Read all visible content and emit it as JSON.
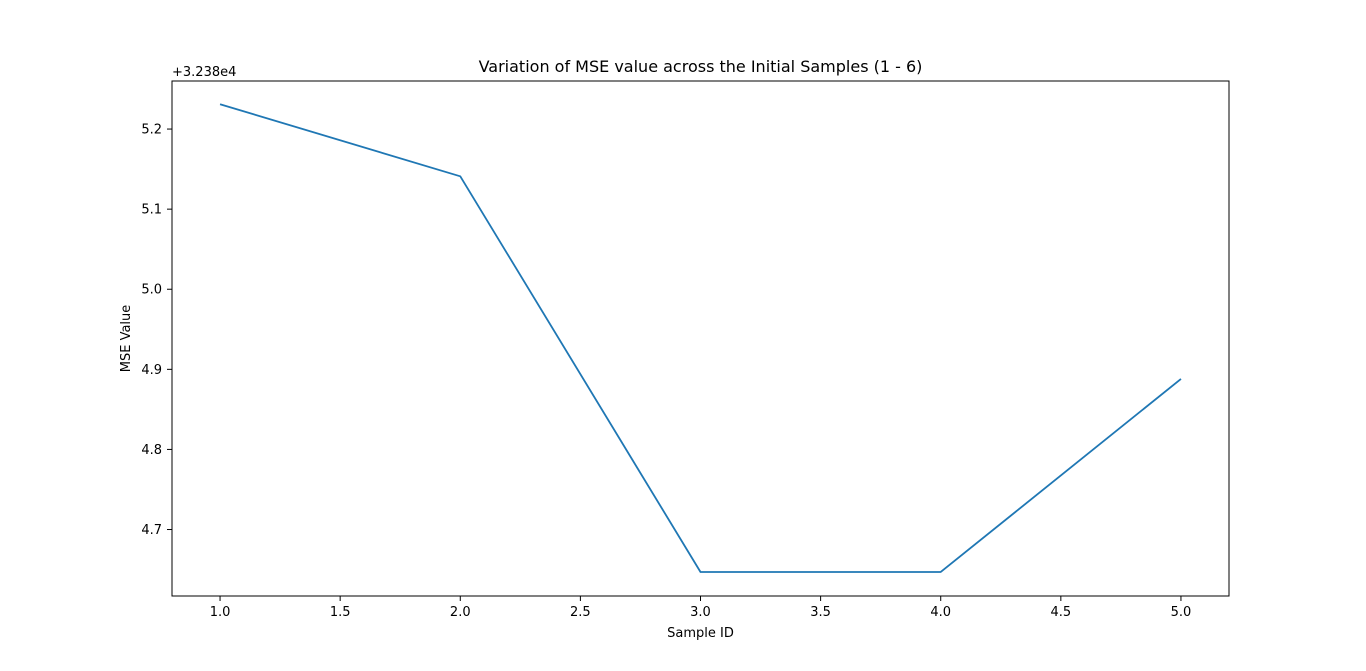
{
  "chart_data": {
    "type": "line",
    "title": "Variation of MSE value across the Initial Samples (1 - 6)",
    "xlabel": "Sample ID",
    "ylabel": "MSE Value",
    "offset_label": "+3.238e4",
    "x": [
      1.0,
      2.0,
      3.0,
      4.0,
      5.0
    ],
    "series": [
      {
        "values": [
          5.231,
          5.141,
          4.647,
          4.647,
          4.888
        ]
      }
    ],
    "xlim": [
      0.8,
      5.2
    ],
    "ylim": [
      4.617,
      5.26
    ],
    "xticks": [
      1.0,
      1.5,
      2.0,
      2.5,
      3.0,
      3.5,
      4.0,
      4.5,
      5.0
    ],
    "xtick_labels": [
      "1.0",
      "1.5",
      "2.0",
      "2.5",
      "3.0",
      "3.5",
      "4.0",
      "4.5",
      "5.0"
    ],
    "yticks": [
      4.7,
      4.8,
      4.9,
      5.0,
      5.1,
      5.2
    ],
    "ytick_labels": [
      "4.7",
      "4.8",
      "4.9",
      "5.0",
      "5.1",
      "5.2"
    ],
    "grid": false,
    "line_color": "#1f77b4"
  }
}
